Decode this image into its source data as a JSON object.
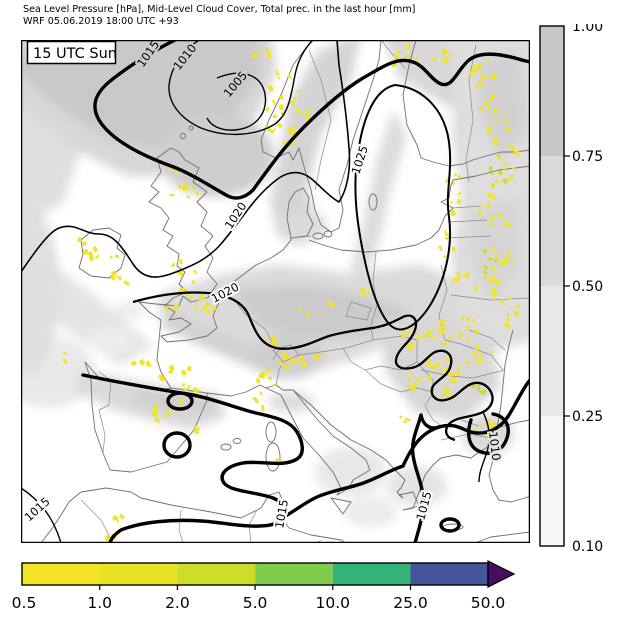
{
  "title": {
    "line1": "Sea Level Pressure [hPa], Mid-Level Cloud Cover, Total prec. in the last hour [mm]",
    "line2": "WRF 05.06.2019 18:00 UTC +93"
  },
  "map": {
    "timestamp_label": "15 UTC Sun",
    "contour_labels": [
      {
        "text": "1015"
      },
      {
        "text": "1010"
      },
      {
        "text": "1005"
      },
      {
        "text": "1020"
      },
      {
        "text": "1020"
      },
      {
        "text": "1025"
      },
      {
        "text": "1015"
      },
      {
        "text": "1015"
      },
      {
        "text": "1010"
      },
      {
        "text": "1015"
      }
    ]
  },
  "colorbar_cloud": {
    "tick_labels": [
      "1.00",
      "0.75",
      "0.50",
      "0.25",
      "0.10"
    ],
    "segment_colors_top_to_bottom": [
      "#c8c8c8",
      "#dbdbdb",
      "#e8e8e8",
      "#f7f7f7"
    ]
  },
  "colorbar_precip": {
    "tick_labels": [
      "0.5",
      "1.0",
      "2.0",
      "5.0",
      "10.0",
      "25.0",
      "50.0"
    ],
    "segment_colors": [
      "#f2e324",
      "#e9e222",
      "#cddc28",
      "#82cc4d",
      "#35b277",
      "#46549e"
    ],
    "overflow_color": "#470d5e"
  },
  "cloud_gray_levels": {
    "light": "#e6e6e6",
    "mid": "#d9d9d9",
    "dark": "#c9c9c9"
  }
}
